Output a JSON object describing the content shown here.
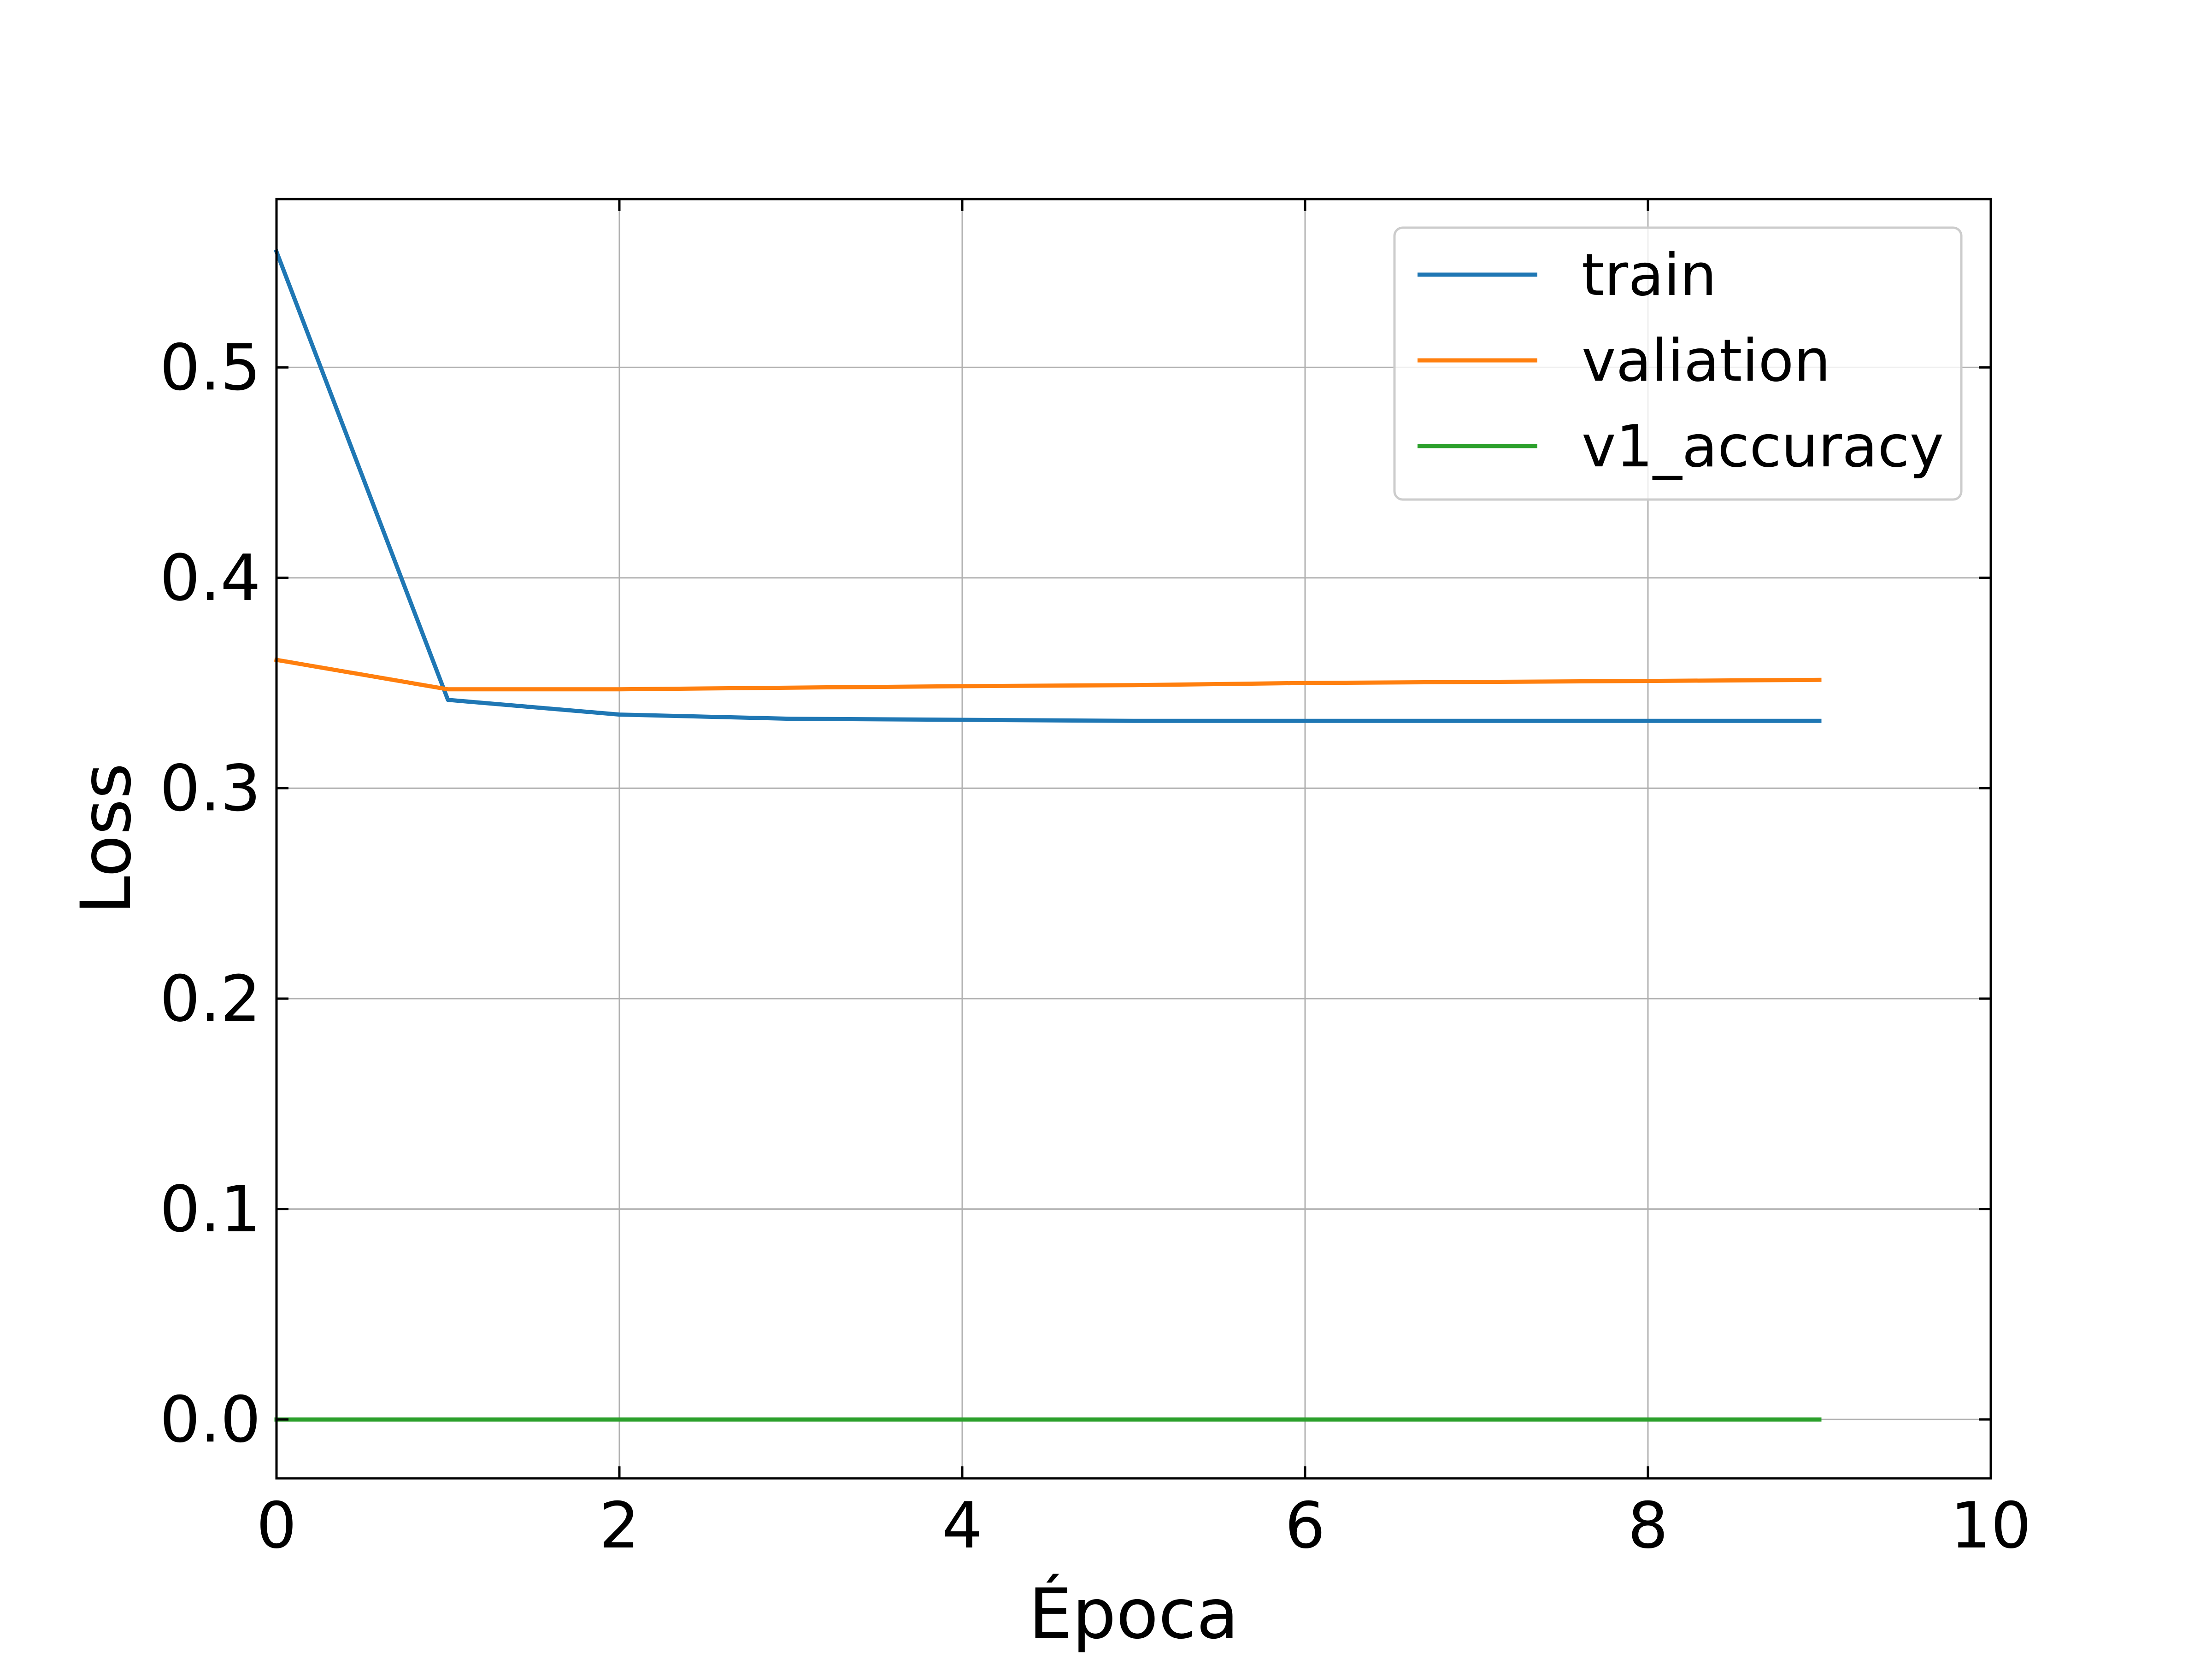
{
  "chart_data": {
    "type": "line",
    "xlabel": "Época",
    "ylabel": "Loss",
    "xlim": [
      0,
      10
    ],
    "ylim": [
      -0.028,
      0.58
    ],
    "xticks": [
      "0",
      "2",
      "4",
      "6",
      "8",
      "10"
    ],
    "yticks": [
      "0.0",
      "0.1",
      "0.2",
      "0.3",
      "0.4",
      "0.5"
    ],
    "grid": true,
    "legend_position": "top-right",
    "x": [
      0,
      1,
      2,
      3,
      4,
      5,
      6,
      7,
      8,
      9
    ],
    "series": [
      {
        "name": "train",
        "color": "#1f77b4",
        "values": [
          0.555,
          0.342,
          0.335,
          0.333,
          0.3325,
          0.332,
          0.332,
          0.332,
          0.332,
          0.332
        ]
      },
      {
        "name": "valiation",
        "color": "#ff7f0e",
        "values": [
          0.361,
          0.347,
          0.347,
          0.3478,
          0.3485,
          0.349,
          0.35,
          0.3505,
          0.351,
          0.3515
        ]
      },
      {
        "name": "v1_accuracy",
        "color": "#2ca02c",
        "values": [
          0,
          0,
          0,
          0,
          0,
          0,
          0,
          0,
          0,
          0
        ]
      }
    ]
  }
}
